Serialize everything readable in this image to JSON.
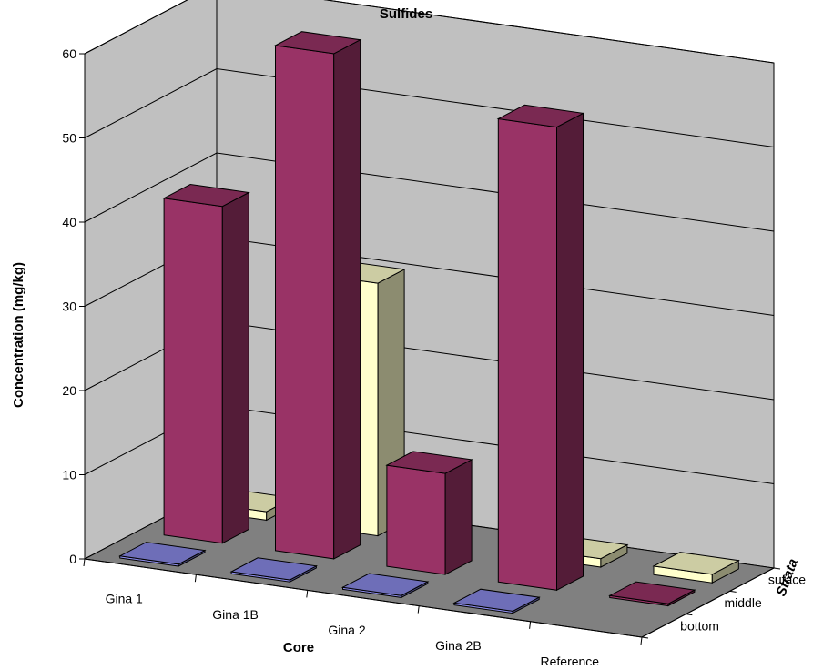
{
  "chart_data": {
    "type": "bar",
    "subtype": "3d-clustered-depth",
    "title": "Sulfides",
    "xlabel": "Core",
    "ylabel": "Concentration (mg/kg)",
    "zlabel": "Strata",
    "categories": [
      "Gina 1",
      "Gina 1B",
      "Gina 2",
      "Gina 2B",
      "Reference"
    ],
    "depth_categories": [
      "bottom",
      "middle",
      "suface"
    ],
    "ylim": [
      0,
      60
    ],
    "yticks": [
      0,
      10,
      20,
      30,
      40,
      50,
      60
    ],
    "grid": true,
    "series": [
      {
        "name": "bottom",
        "values": [
          0,
          0,
          0,
          0,
          null
        ],
        "color": "#8a8ae6"
      },
      {
        "name": "middle",
        "values": [
          40,
          60,
          12,
          55,
          0
        ],
        "color": "#993366"
      },
      {
        "name": "suface",
        "values": [
          1,
          30,
          null,
          1,
          1
        ],
        "color": "#ffffcc"
      }
    ]
  }
}
